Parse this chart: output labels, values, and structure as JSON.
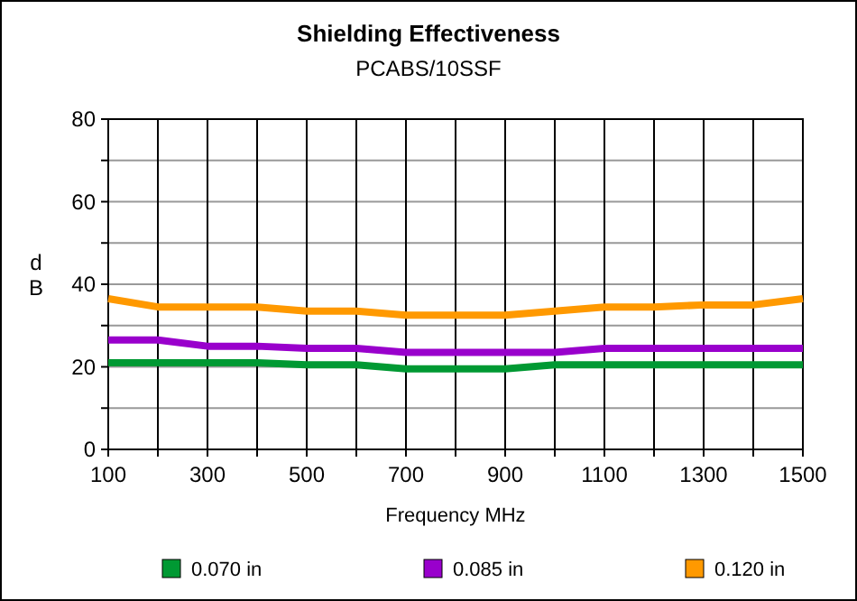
{
  "chart_data": {
    "type": "line",
    "title": "Shielding Effectiveness",
    "subtitle": "PCABS/10SSF",
    "xlabel": "Frequency MHz",
    "ylabel": "dB",
    "x": [
      100,
      200,
      300,
      400,
      500,
      600,
      700,
      800,
      900,
      1000,
      1100,
      1200,
      1300,
      1400,
      1500
    ],
    "series": [
      {
        "name": "0.070 in",
        "color": "#009933",
        "values": [
          21,
          21,
          21,
          21,
          20.5,
          20.5,
          19.5,
          19.5,
          19.5,
          20.5,
          20.5,
          20.5,
          20.5,
          20.5,
          20.5
        ]
      },
      {
        "name": "0.085 in",
        "color": "#9900cc",
        "values": [
          26.5,
          26.5,
          25,
          25,
          24.5,
          24.5,
          23.5,
          23.5,
          23.5,
          23.5,
          24.5,
          24.5,
          24.5,
          24.5,
          24.5
        ]
      },
      {
        "name": "0.120 in",
        "color": "#ff9900",
        "values": [
          36.5,
          34.5,
          34.5,
          34.5,
          33.5,
          33.5,
          32.5,
          32.5,
          32.5,
          33.5,
          34.5,
          34.5,
          35,
          35,
          36.5
        ]
      }
    ],
    "xlim": [
      100,
      1500
    ],
    "xticks": [
      100,
      {
        "value": 200,
        "label": null
      },
      300,
      {
        "value": 400,
        "label": null
      },
      500,
      {
        "value": 600,
        "label": null
      },
      700,
      {
        "value": 800,
        "label": null
      },
      900,
      {
        "value": 1000,
        "label": null
      },
      1100,
      {
        "value": 1200,
        "label": null
      },
      1300,
      {
        "value": 1400,
        "label": null
      },
      1500
    ],
    "ylim": [
      0,
      80
    ],
    "yticks": [
      0,
      {
        "value": 10,
        "label": null
      },
      20,
      {
        "value": 30,
        "label": null
      },
      40,
      {
        "value": 50,
        "label": null
      },
      60,
      {
        "value": 70,
        "label": null
      },
      80
    ],
    "grid": true,
    "legend": "bottom",
    "marker": "none",
    "line_style": "solid"
  }
}
